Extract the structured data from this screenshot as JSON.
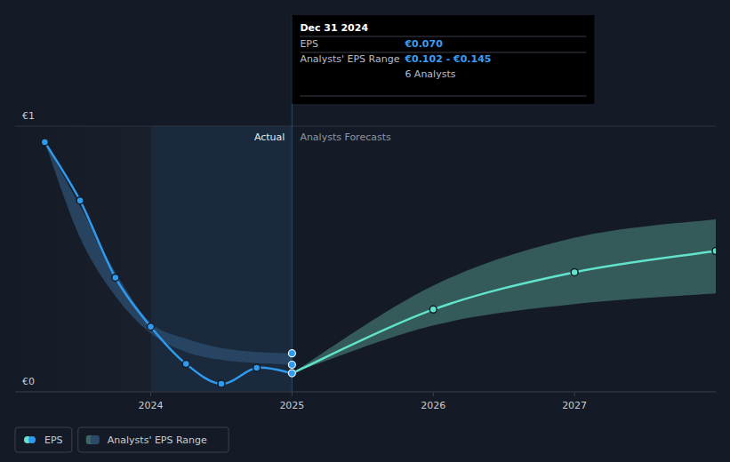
{
  "chart_data": {
    "type": "line",
    "xlim": [
      2023.04,
      2028
    ],
    "xticks": [
      2024,
      2025,
      2026,
      2027
    ],
    "ylim": [
      0,
      1
    ],
    "yticks": [
      {
        "value": 0,
        "label": "€0"
      },
      {
        "value": 1,
        "label": "€1"
      }
    ],
    "grid": true,
    "legend": "bottom-left",
    "actual_region": {
      "label": "Actual",
      "x": [
        2024,
        2025
      ]
    },
    "forecast_label": "Analysts Forecasts",
    "series": [
      {
        "name": "EPS",
        "type": "line",
        "marker": "circle",
        "x": [
          2023.25,
          2023.5,
          2023.75,
          2024,
          2024.25,
          2024.5,
          2024.75,
          2025,
          2026,
          2027,
          2028
        ],
        "values": [
          0.94,
          0.72,
          0.43,
          0.245,
          0.105,
          0.03,
          0.09,
          0.07,
          0.31,
          0.45,
          0.53
        ],
        "colors": [
          "#2e9bf0",
          "#2e9bf0",
          "#2e9bf0",
          "#2e9bf0",
          "#2e9bf0",
          "#2e9bf0",
          "#2e9bf0",
          "#2e9bf0",
          "#62e3cd",
          "#62e3cd",
          "#62e3cd"
        ]
      },
      {
        "name": "Analysts' EPS Range",
        "type": "area",
        "bands": [
          {
            "x": [
              2023.25,
              2023.5,
              2023.75,
              2024,
              2024.25,
              2024.5,
              2024.75,
              2025
            ],
            "lower": [
              0.94,
              0.58,
              0.36,
              0.22,
              0.15,
              0.12,
              0.108,
              0.102
            ],
            "upper": [
              0.94,
              0.7,
              0.45,
              0.26,
              0.2,
              0.165,
              0.15,
              0.145
            ],
            "color": "#2a4a68"
          },
          {
            "x": [
              2025,
              2026,
              2027,
              2028
            ],
            "lower": [
              0.07,
              0.25,
              0.33,
              0.37
            ],
            "upper": [
              0.07,
              0.4,
              0.58,
              0.65
            ],
            "color": "#3a6663"
          }
        ]
      }
    ],
    "tooltip": {
      "title": "Dec 31 2024",
      "x": 2025,
      "eps_label": "EPS",
      "eps": 0.07,
      "eps_text": "€0.070",
      "range_label": "Analysts' EPS Range",
      "range": [
        0.102,
        0.145
      ],
      "range_text": "€0.102 - €0.145",
      "analysts": "6 Analysts"
    }
  }
}
